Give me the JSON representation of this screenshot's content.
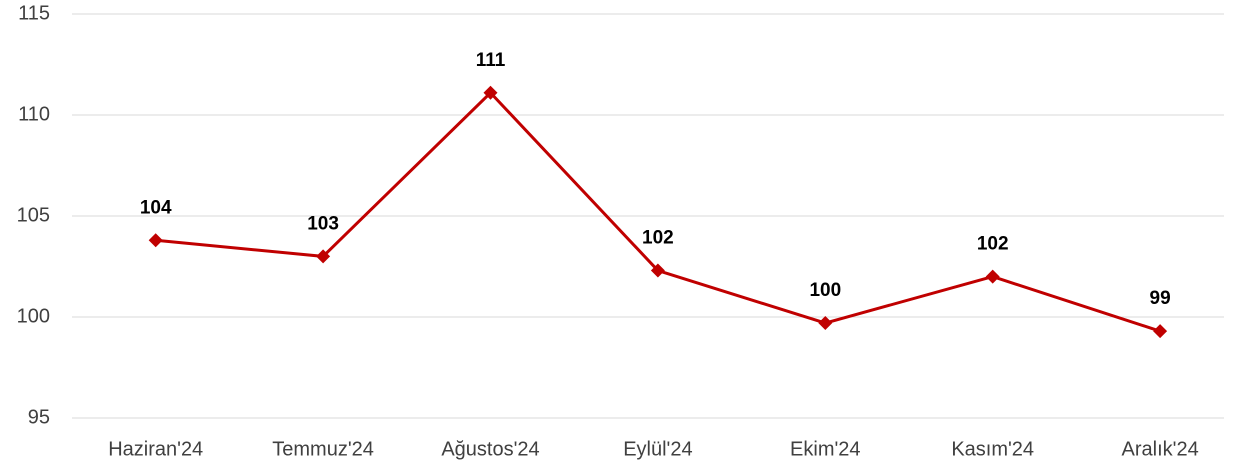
{
  "chart_data": {
    "type": "line",
    "categories": [
      "Haziran'24",
      "Temmuz'24",
      "Ağustos'24",
      "Eylül'24",
      "Ekim'24",
      "Kasım'24",
      "Aralık'24"
    ],
    "series": [
      {
        "color": "#c00000",
        "values": [
          103.8,
          103.0,
          111.1,
          102.3,
          99.7,
          102.0,
          99.3
        ],
        "value_labels": [
          "104",
          "103",
          "111",
          "102",
          "100",
          "102",
          "99"
        ]
      }
    ],
    "ylim": [
      95,
      115
    ],
    "yticks": [
      95,
      100,
      105,
      110,
      115
    ],
    "grid": true
  }
}
